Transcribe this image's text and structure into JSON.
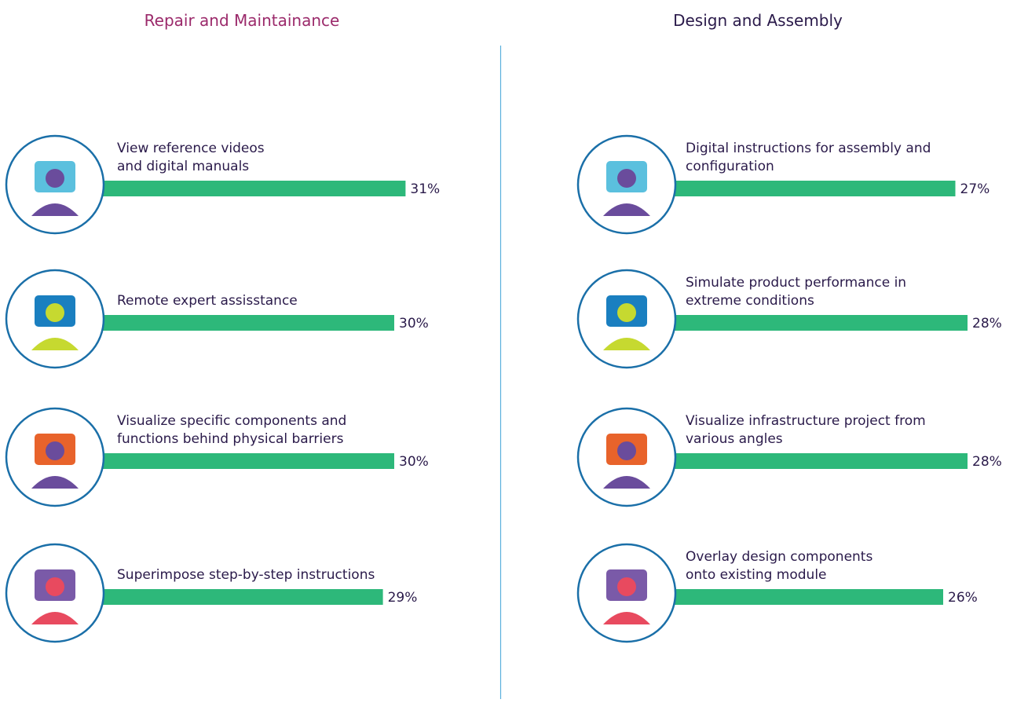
{
  "chart_data": [
    {
      "type": "bar",
      "title": "Repair and Maintainance",
      "categories": [
        "View reference videos\nand digital manuals",
        "Remote expert assisstance",
        "Visualize specific components and\nfunctions behind physical barriers",
        "Superimpose step-by-step instructions"
      ],
      "values": [
        31,
        30,
        30,
        29
      ],
      "value_labels": [
        "31%",
        "30%",
        "30%",
        "29%"
      ],
      "color": "#2db87a"
    },
    {
      "type": "bar",
      "title": "Design and Assembly",
      "categories": [
        "Digital instructions for assembly and\nconfiguration",
        "Simulate product performance in\nextreme conditions",
        "Visualize infrastructure project from\nvarious angles",
        "Overlay design components\nonto existing module"
      ],
      "values": [
        27,
        28,
        28,
        26
      ],
      "value_labels": [
        "27%",
        "28%",
        "28%",
        "26%"
      ],
      "color": "#2db87a"
    }
  ]
}
